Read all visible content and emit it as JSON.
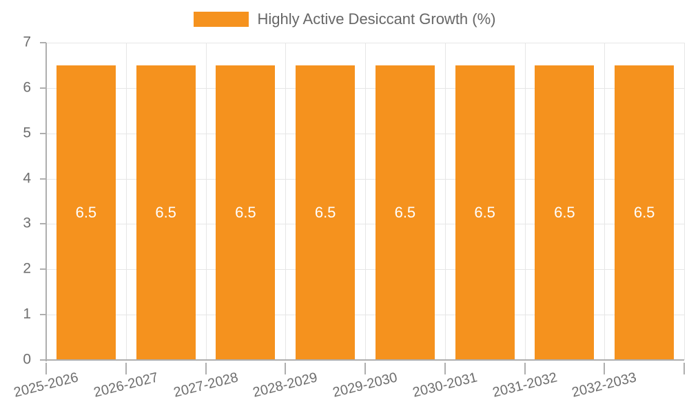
{
  "chart_data": {
    "type": "bar",
    "title": "",
    "legend_position": "top",
    "categories": [
      "2025-2026",
      "2026-2027",
      "2027-2028",
      "2028-2029",
      "2029-2030",
      "2030-2031",
      "2031-2032",
      "2032-2033"
    ],
    "series": [
      {
        "name": "Highly Active Desiccant Growth (%)",
        "values": [
          6.5,
          6.5,
          6.5,
          6.5,
          6.5,
          6.5,
          6.5,
          6.5
        ],
        "value_labels": [
          "6.5",
          "6.5",
          "6.5",
          "6.5",
          "6.5",
          "6.5",
          "6.5",
          "6.5"
        ],
        "color": "#F5921E"
      }
    ],
    "xlabel": "",
    "ylabel": "",
    "ylim": [
      0,
      7
    ],
    "y_ticks": [
      "0",
      "1",
      "2",
      "3",
      "4",
      "5",
      "6",
      "7"
    ],
    "grid": "on",
    "x_tick_label_rotation_deg": -14
  },
  "colors": {
    "bar": "#F5921E",
    "gridline": "#e6e6e6",
    "axis_line": "#aeaeae",
    "axis_label_text": "#6e6e6e",
    "legend_text": "#666666",
    "bar_value_text": "#ffffff",
    "background": "#ffffff"
  }
}
